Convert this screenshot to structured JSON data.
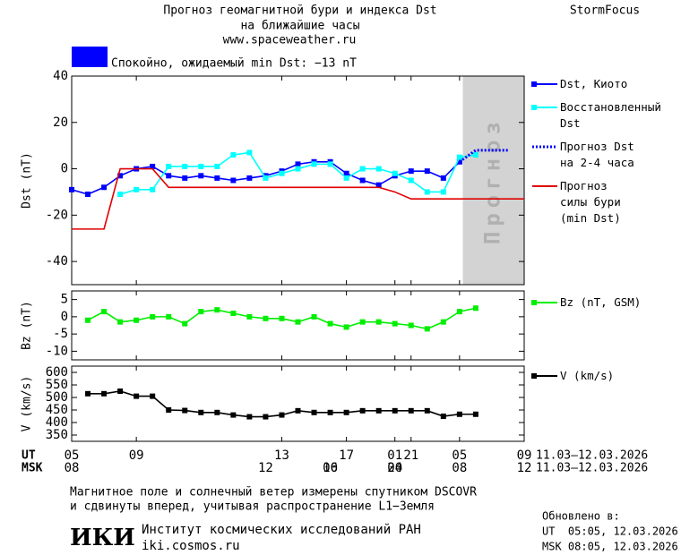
{
  "header": {
    "title": "Прогноз геомагнитной бури и индекса Dst",
    "subtitle": "на ближайшие часы",
    "url": "www.spaceweather.ru",
    "brand": "StormFocus",
    "status": {
      "text": "Спокойно, ожидаемый min Dst: −13 nT",
      "color": "#0000ff"
    }
  },
  "chart_data": [
    {
      "type": "line",
      "ylabel": "Dst (nT)",
      "xlim": [
        0,
        28
      ],
      "ylim": [
        -50,
        40
      ],
      "yticks": [
        -40,
        -20,
        0,
        20,
        40
      ],
      "shade": {
        "label": "Прогноз",
        "x": [
          24.2,
          28
        ],
        "color": "#d3d3d3"
      },
      "series": [
        {
          "name": "Dst, Киото",
          "color": "#0000ff",
          "marker": "square",
          "x": [
            0,
            1,
            2,
            3,
            4,
            5,
            6,
            7,
            8,
            9,
            10,
            11,
            12,
            13,
            14,
            15,
            16,
            17,
            18,
            19,
            20,
            21,
            22,
            23,
            24
          ],
          "values": [
            -9,
            -11,
            -8,
            -3,
            0,
            1,
            -3,
            -4,
            -3,
            -4,
            -5,
            -4,
            -3,
            -1,
            2,
            3,
            3,
            -2,
            -5,
            -7,
            -3,
            -1,
            -1,
            -4,
            3
          ]
        },
        {
          "name": "Восстановленный\nDst",
          "color": "#00ffff",
          "marker": "square",
          "x": [
            3,
            4,
            5,
            6,
            7,
            8,
            9,
            10,
            11,
            12,
            13,
            14,
            15,
            16,
            17,
            18,
            19,
            20,
            21,
            22,
            23,
            24,
            25
          ],
          "values": [
            -11,
            -9,
            -9,
            1,
            1,
            1,
            1,
            6,
            7,
            -4,
            -2,
            0,
            2,
            2,
            -4,
            0,
            0,
            -2,
            -5,
            -10,
            -10,
            5,
            6
          ]
        },
        {
          "name": "Прогноз Dst\nна 2-4 часа",
          "color": "#0000ff",
          "linestyle": "dotted",
          "x": [
            24,
            25,
            26,
            27
          ],
          "values": [
            3,
            8,
            8,
            8
          ]
        },
        {
          "name": "Прогноз\nсилы бури\n(min Dst)",
          "color": "#e00000",
          "x": [
            0,
            2,
            3,
            5,
            6,
            19,
            20,
            21,
            28
          ],
          "values": [
            -26,
            -26,
            0,
            0,
            -8,
            -8,
            -10,
            -13,
            -13
          ]
        }
      ]
    },
    {
      "type": "line",
      "ylabel": "Bz (nT)",
      "xlim": [
        0,
        28
      ],
      "ylim": [
        -12.5,
        7.5
      ],
      "yticks": [
        -10,
        -5,
        0,
        5
      ],
      "series": [
        {
          "name": "Bz (nT, GSM)",
          "color": "#00ee00",
          "marker": "square",
          "x": [
            1,
            2,
            3,
            4,
            5,
            6,
            7,
            8,
            9,
            10,
            11,
            12,
            13,
            14,
            15,
            16,
            17,
            18,
            19,
            20,
            21,
            22,
            23,
            24,
            25
          ],
          "values": [
            -1,
            1.5,
            -1.5,
            -1,
            0,
            0,
            -2,
            1.5,
            2,
            1,
            0,
            -0.5,
            -0.5,
            -1.5,
            0,
            -2,
            -3,
            -1.5,
            -1.5,
            -2,
            -2.5,
            -3.5,
            -1.5,
            1.5,
            2.5
          ]
        }
      ]
    },
    {
      "type": "line",
      "ylabel": "V (km/s)",
      "xlim": [
        0,
        28
      ],
      "ylim": [
        325,
        625
      ],
      "yticks": [
        350,
        400,
        450,
        500,
        550,
        600
      ],
      "xlabel": "UT",
      "x2label": "MSK",
      "date_range": "11.03–12.03.2026",
      "xticks": [
        {
          "value": 0,
          "label": "05"
        },
        {
          "value": 4,
          "label": "09"
        },
        13,
        17,
        21,
        {
          "value": 20,
          "label": "01"
        },
        {
          "value": 24,
          "label": "05"
        },
        {
          "value": 28,
          "label": "09"
        }
      ],
      "x2ticks": [
        {
          "value": 0,
          "label": "08"
        },
        12,
        16,
        20,
        {
          "value": 16,
          "label": "00"
        },
        {
          "value": 20,
          "label": "04"
        },
        {
          "value": 24,
          "label": "08"
        },
        {
          "value": 28,
          "label": "12"
        }
      ],
      "series": [
        {
          "name": "V (km/s)",
          "color": "#000000",
          "marker": "square",
          "x": [
            1,
            2,
            3,
            4,
            5,
            6,
            7,
            8,
            9,
            10,
            11,
            12,
            13,
            14,
            15,
            16,
            17,
            18,
            19,
            20,
            21,
            22,
            23,
            24,
            25
          ],
          "values": [
            515,
            515,
            525,
            505,
            505,
            450,
            448,
            440,
            440,
            430,
            423,
            423,
            430,
            447,
            440,
            440,
            440,
            447,
            447,
            447,
            447,
            447,
            425,
            433,
            433
          ]
        }
      ]
    }
  ],
  "footer": {
    "note": [
      "Магнитное поле и солнечный ветер измерены спутником DSCOVR",
      "и сдвинуты вперед, учитывая распространение L1−Земля"
    ],
    "logo": "ИКИ",
    "institute": "Институт космических исследований РАН",
    "site": "iki.cosmos.ru",
    "updated_label": "Обновлено в:",
    "updated_ut": "UT  05:05, 12.03.2026",
    "updated_msk": "MSK 08:05, 12.03.2026"
  }
}
